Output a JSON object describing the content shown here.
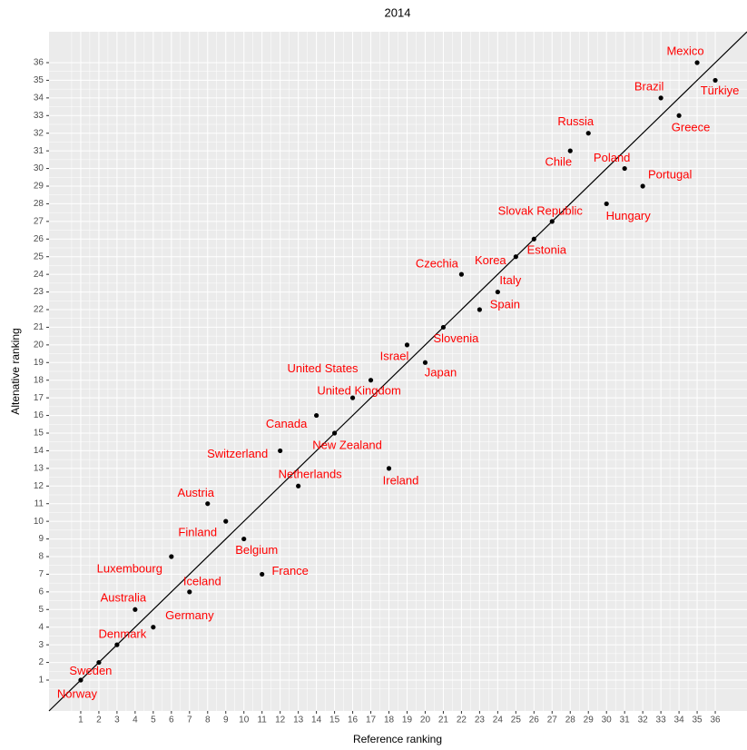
{
  "chart_data": {
    "type": "scatter",
    "title": "2014",
    "x_label": "Reference ranking",
    "y_label": "Altenative ranking",
    "labels": [
      "Norway",
      "Sweden",
      "Denmark",
      "Germany",
      "Australia",
      "Iceland",
      "France",
      "Luxembourg",
      "Belgium",
      "Finland",
      "Austria",
      "Netherlands",
      "Ireland",
      "Switzerland",
      "New Zealand",
      "Canada",
      "United Kingdom",
      "United States",
      "Japan",
      "Israel",
      "Slovenia",
      "Spain",
      "Italy",
      "Czechia",
      "Korea",
      "Estonia",
      "Slovak Republic",
      "Hungary",
      "Portugal",
      "Poland",
      "Chile",
      "Russia",
      "Greece",
      "Brazil",
      "Türkiye",
      "Mexico"
    ],
    "x": [
      1,
      2,
      3,
      5,
      4,
      7,
      11,
      6,
      10,
      9,
      8,
      13,
      18,
      12,
      15,
      14,
      16,
      17,
      20,
      19,
      21,
      23,
      24,
      22,
      25,
      26,
      27,
      30,
      32,
      31,
      28,
      29,
      34,
      33,
      36,
      35
    ],
    "y": [
      1,
      2,
      3,
      4,
      5,
      6,
      7,
      8,
      9,
      10,
      11,
      12,
      13,
      14,
      15,
      16,
      17,
      18,
      19,
      20,
      21,
      22,
      23,
      24,
      25,
      26,
      27,
      28,
      29,
      30,
      31,
      32,
      33,
      34,
      35,
      36
    ],
    "point_color": "#000000",
    "label_color": "#ff0000",
    "xlim": [
      -0.75,
      37.75
    ],
    "ylim": [
      -0.75,
      37.75
    ],
    "xticks": [
      1,
      2,
      3,
      4,
      5,
      6,
      7,
      8,
      9,
      10,
      11,
      12,
      13,
      14,
      15,
      16,
      17,
      18,
      19,
      20,
      21,
      22,
      23,
      24,
      25,
      26,
      27,
      28,
      29,
      30,
      31,
      32,
      33,
      34,
      35,
      36
    ],
    "yticks": [
      1,
      2,
      3,
      4,
      5,
      6,
      7,
      8,
      9,
      10,
      11,
      12,
      13,
      14,
      15,
      16,
      17,
      18,
      19,
      20,
      21,
      22,
      23,
      24,
      25,
      26,
      27,
      28,
      29,
      30,
      31,
      32,
      33,
      34,
      35,
      36
    ],
    "grid": true
  }
}
